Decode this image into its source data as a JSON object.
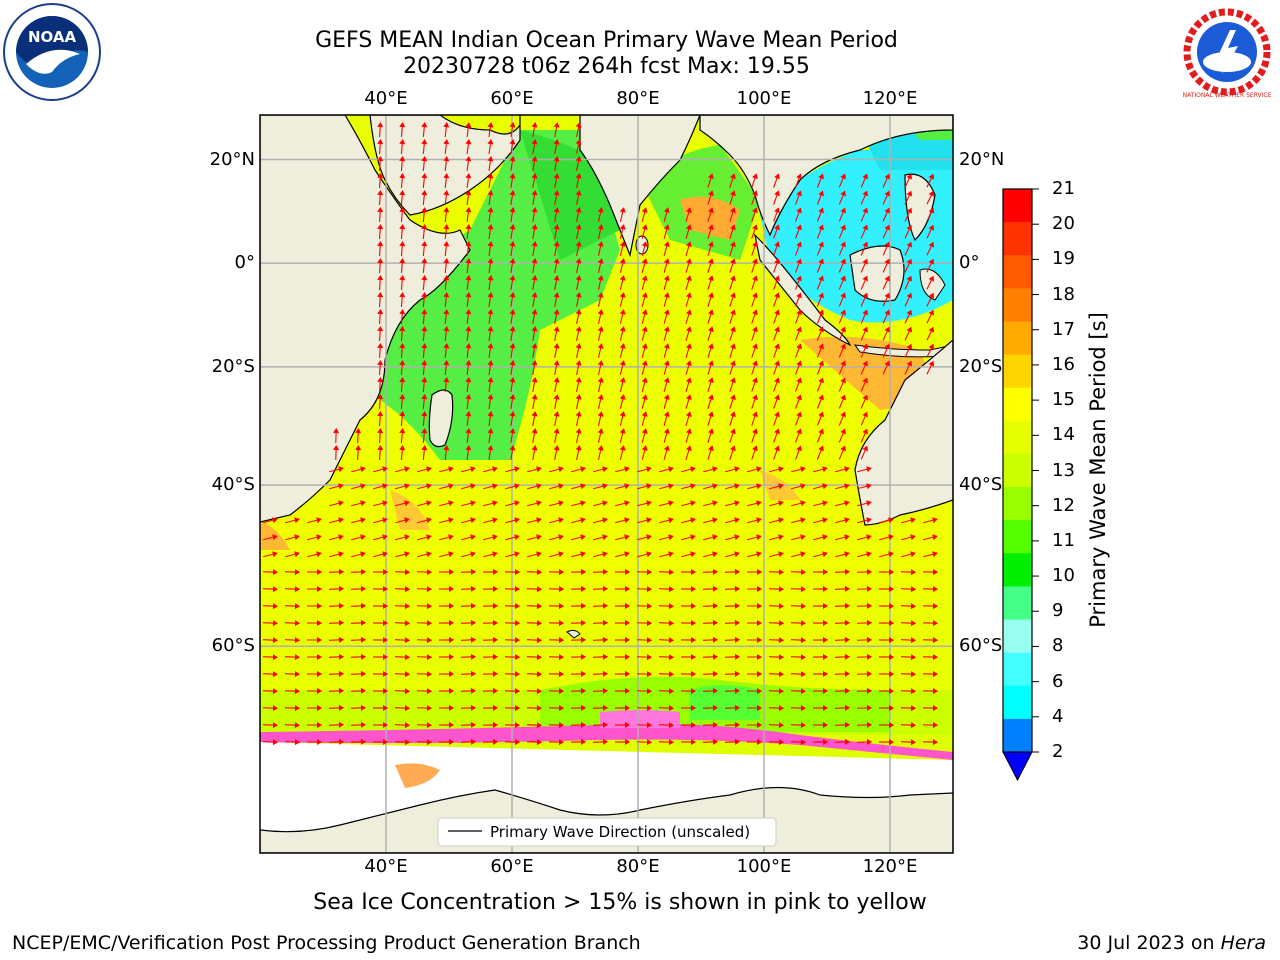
{
  "title": {
    "line1": "GEFS MEAN Indian Ocean Primary Wave Mean Period",
    "line2": "20230728 t06z 264h fcst   Max: 19.55"
  },
  "logos": {
    "left": "NOAA",
    "right": "NATIONAL WEATHER SERVICE"
  },
  "axes": {
    "lon_labels": [
      "40°E",
      "60°E",
      "80°E",
      "100°E",
      "120°E"
    ],
    "lat_labels": [
      "20°N",
      "0°",
      "20°S",
      "40°S",
      "60°S"
    ],
    "lon_values": [
      40,
      60,
      80,
      100,
      120
    ],
    "lat_values": [
      20,
      0,
      -20,
      -40,
      -60
    ],
    "lon_range": [
      20,
      130
    ],
    "lat_range": [
      -75,
      28
    ],
    "grid": true
  },
  "colorbar": {
    "label": "Primary Wave Mean Period [s]",
    "ticks": [
      "21",
      "20",
      "19",
      "18",
      "17",
      "16",
      "15",
      "14",
      "13",
      "12",
      "11",
      "10",
      "9",
      "8",
      "6",
      "4",
      "2"
    ],
    "colors": [
      "#ff0000",
      "#ff3300",
      "#ff5a00",
      "#ff8000",
      "#ffaa00",
      "#ffd500",
      "#ffff00",
      "#e6ff00",
      "#ccff00",
      "#99ff00",
      "#55ff00",
      "#00ee00",
      "#44ff88",
      "#99ffee",
      "#44ffff",
      "#00ffff",
      "#0080ff"
    ],
    "under_color": "#0000ff"
  },
  "legend": {
    "label": "Primary Wave Direction (unscaled)"
  },
  "caption": "Sea Ice Concentration > 15% is shown in pink to yellow",
  "footer": {
    "left": "NCEP/EMC/Verification Post Processing Product Generation Branch",
    "right_date": "30 Jul 2023 on ",
    "right_machine": "Hera"
  },
  "colors": {
    "land": "#efeedc",
    "ice_free_white": "#ffffff",
    "arrow": "#ff0000",
    "gridline": "#b0b0b0"
  }
}
